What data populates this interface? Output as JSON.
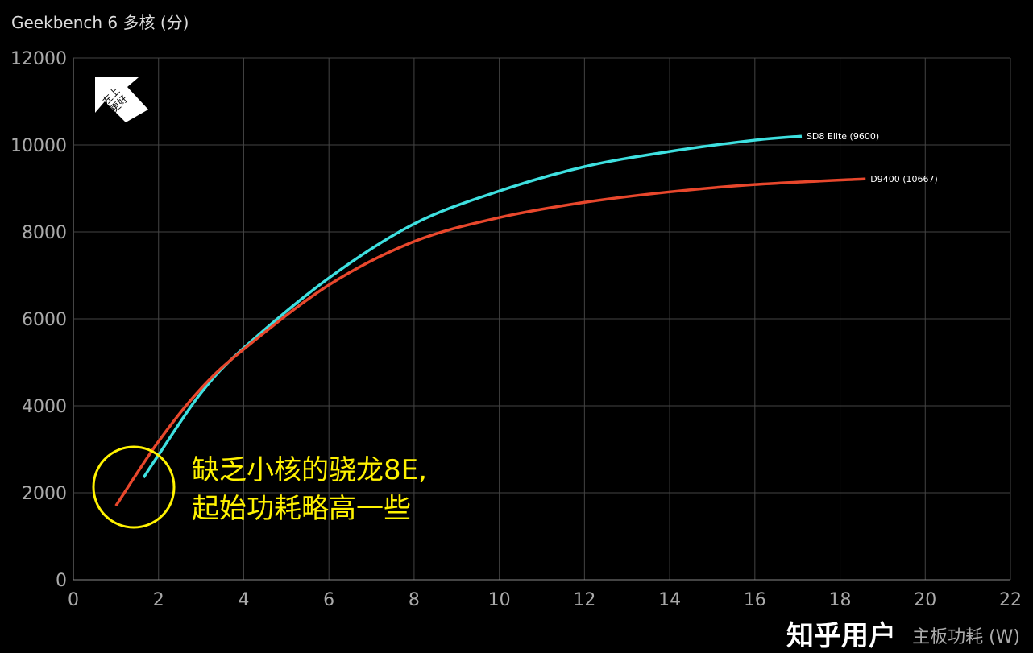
{
  "chart_data": {
    "type": "line",
    "title": "Geekbench 6 多核 (分)",
    "xlabel": "主板功耗 (W)",
    "ylabel": "",
    "xlim": [
      0,
      22
    ],
    "ylim": [
      0,
      12000
    ],
    "xticks": [
      0,
      2,
      4,
      6,
      8,
      10,
      12,
      14,
      16,
      18,
      20,
      22
    ],
    "yticks": [
      0,
      2000,
      4000,
      6000,
      8000,
      10000,
      12000
    ],
    "grid": true,
    "series": [
      {
        "name": "SD8 Elite (9600)",
        "color": "#3ee0e0",
        "x": [
          1.65,
          2,
          3,
          4,
          6,
          8,
          10,
          12,
          14,
          16,
          17.1
        ],
        "y": [
          2350,
          2870,
          4300,
          5330,
          6940,
          8185,
          8940,
          9500,
          9850,
          10110,
          10200
        ]
      },
      {
        "name": "D9400 (10667)",
        "color": "#e8472c",
        "x": [
          1.0,
          2,
          3,
          4,
          6,
          8,
          10,
          12,
          14,
          16,
          18.6
        ],
        "y": [
          1700,
          3180,
          4400,
          5300,
          6780,
          7780,
          8330,
          8680,
          8920,
          9090,
          9220
        ]
      }
    ],
    "annotations": {
      "corner_badge": "左上更好",
      "note_line1": "缺乏小核的骁龙8E,",
      "note_line2": "起始功耗略高一些",
      "highlight_color": "#fff200"
    }
  },
  "watermark": "知乎用户"
}
